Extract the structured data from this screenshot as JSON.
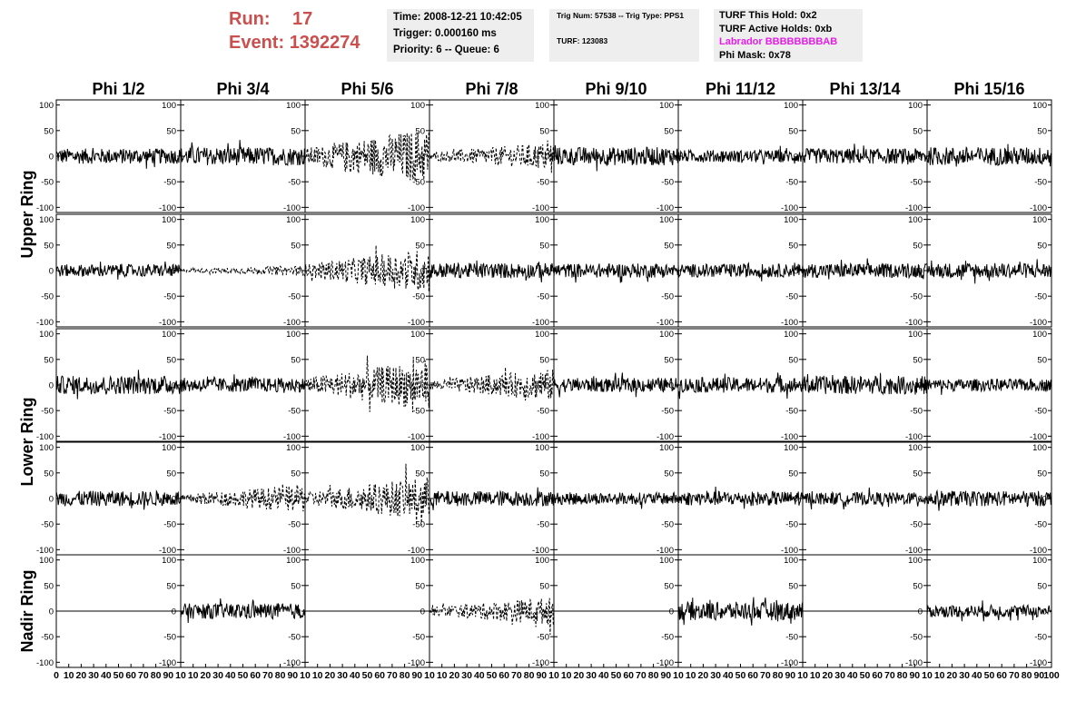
{
  "header": {
    "run_label": "Run:",
    "run_value": "17",
    "event_label": "Event:",
    "event_value": "1392274",
    "time": "Time: 2008-12-21 10:42:05",
    "trigger": "Trigger: 0.000160 ms",
    "priority": "Priority: 6 -- Queue: 6",
    "trig_num": "Trig Num: 57538 -- Trig Type: PPS1",
    "turf": "TURF: 123083",
    "turf_this_hold": "TURF This Hold: 0x2",
    "turf_active_holds": "TURF Active Holds: 0xb",
    "labrador": "Labrador BBBBBBBBAB",
    "phi_mask": "Phi Mask: 0x78"
  },
  "colors": {
    "run_text": "#c9504f",
    "labrador": "#e81ce8",
    "info_bg": "#eeeeee"
  },
  "columns": [
    "Phi 1/2",
    "Phi 3/4",
    "Phi 5/6",
    "Phi 7/8",
    "Phi 9/10",
    "Phi 11/12",
    "Phi 13/14",
    "Phi 15/16"
  ],
  "rings": [
    {
      "label": "Upper Ring"
    },
    {
      "label": "Lower Ring"
    },
    {
      "label": "Nadir Ring"
    }
  ],
  "chart_data": {
    "type": "line",
    "rows": 5,
    "cols": 8,
    "xlim": [
      0,
      100
    ],
    "ylim": [
      -110,
      110
    ],
    "yticks": [
      -100,
      -50,
      0,
      50,
      100
    ],
    "xticks": [
      0,
      10,
      20,
      30,
      40,
      50,
      60,
      70,
      80,
      90,
      100
    ],
    "panels": [
      [
        {
          "s": "solid",
          "a": 15
        },
        {
          "s": "solid",
          "a": 18
        },
        {
          "s": "dashed",
          "a": 45
        },
        {
          "s": "dashed",
          "a": 22
        },
        {
          "s": "solid",
          "a": 18
        },
        {
          "s": "solid",
          "a": 12
        },
        {
          "s": "solid",
          "a": 15
        },
        {
          "s": "solid",
          "a": 18
        }
      ],
      [
        {
          "s": "solid",
          "a": 12
        },
        {
          "s": "dashed",
          "a": 8
        },
        {
          "s": "dashed",
          "a": 35
        },
        {
          "s": "solid",
          "a": 15
        },
        {
          "s": "solid",
          "a": 14
        },
        {
          "s": "solid",
          "a": 13
        },
        {
          "s": "solid",
          "a": 14
        },
        {
          "s": "solid",
          "a": 15
        }
      ],
      [
        {
          "s": "solid",
          "a": 18
        },
        {
          "s": "solid",
          "a": 14
        },
        {
          "s": "dashed",
          "a": 40
        },
        {
          "s": "dashed",
          "a": 25
        },
        {
          "s": "solid",
          "a": 14
        },
        {
          "s": "solid",
          "a": 15
        },
        {
          "s": "solid",
          "a": 18
        },
        {
          "s": "solid",
          "a": 12
        }
      ],
      [
        {
          "s": "solid",
          "a": 15
        },
        {
          "s": "dashed",
          "a": 22
        },
        {
          "s": "dashed",
          "a": 35
        },
        {
          "s": "solid",
          "a": 15
        },
        {
          "s": "solid",
          "a": 12
        },
        {
          "s": "solid",
          "a": 14
        },
        {
          "s": "solid",
          "a": 12
        },
        {
          "s": "solid",
          "a": 15
        }
      ],
      [
        {
          "s": "flat",
          "a": 0
        },
        {
          "s": "solid",
          "a": 15
        },
        {
          "s": "flat",
          "a": 0
        },
        {
          "s": "dashed",
          "a": 22
        },
        {
          "s": "flat",
          "a": 0
        },
        {
          "s": "solid",
          "a": 18
        },
        {
          "s": "flat",
          "a": 0
        },
        {
          "s": "solid",
          "a": 12
        }
      ]
    ]
  }
}
